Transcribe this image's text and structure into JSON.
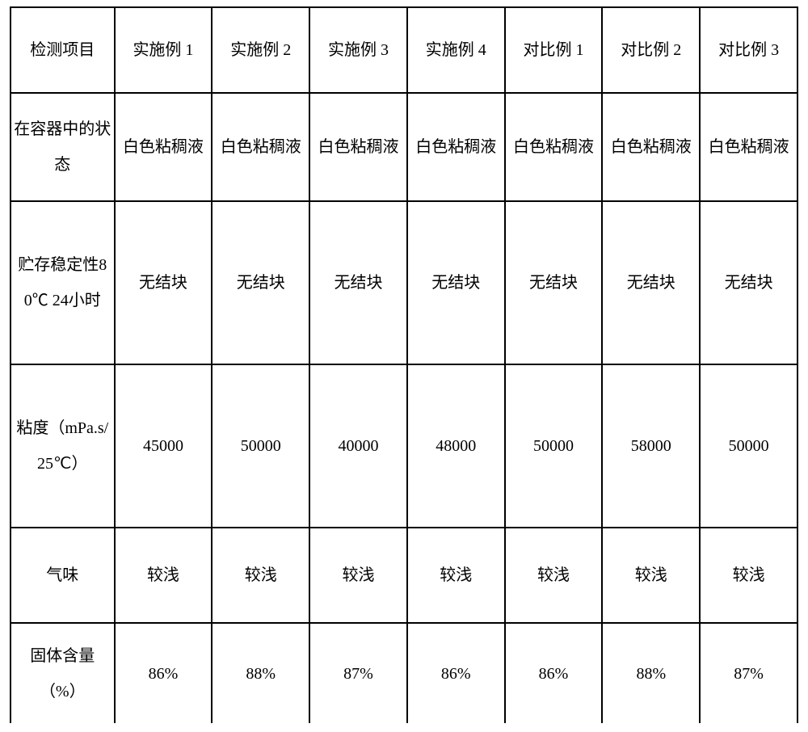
{
  "table": {
    "type": "table",
    "background_color": "#ffffff",
    "border_color": "#000000",
    "text_color": "#000000",
    "font_size_pt": 15,
    "columns": [
      "检测项目",
      "实施例 1",
      "实施例 2",
      "实施例 3",
      "实施例 4",
      "对比例 1",
      "对比例 2",
      "对比例 3"
    ],
    "column_widths_pct": [
      13.2,
      12.4,
      12.4,
      12.4,
      12.4,
      12.4,
      12.4,
      12.4
    ],
    "rows": [
      {
        "label": "在容器中的状态",
        "values": [
          "白色粘稠液",
          "白色粘稠液",
          "白色粘稠液",
          "白色粘稠液",
          "白色粘稠液",
          "白色粘稠液",
          "白色粘稠液"
        ]
      },
      {
        "label": "贮存稳定性80℃ 24小时",
        "values": [
          "无结块",
          "无结块",
          "无结块",
          "无结块",
          "无结块",
          "无结块",
          "无结块"
        ]
      },
      {
        "label": "粘度（mPa.s/25℃）",
        "values": [
          "45000",
          "50000",
          "40000",
          "48000",
          "50000",
          "58000",
          "50000"
        ]
      },
      {
        "label": "气味",
        "values": [
          "较浅",
          "较浅",
          "较浅",
          "较浅",
          "较浅",
          "较浅",
          "较浅"
        ]
      },
      {
        "label": "固体含量（%）",
        "values": [
          "86%",
          "88%",
          "87%",
          "86%",
          "86%",
          "88%",
          "87%"
        ]
      }
    ]
  }
}
